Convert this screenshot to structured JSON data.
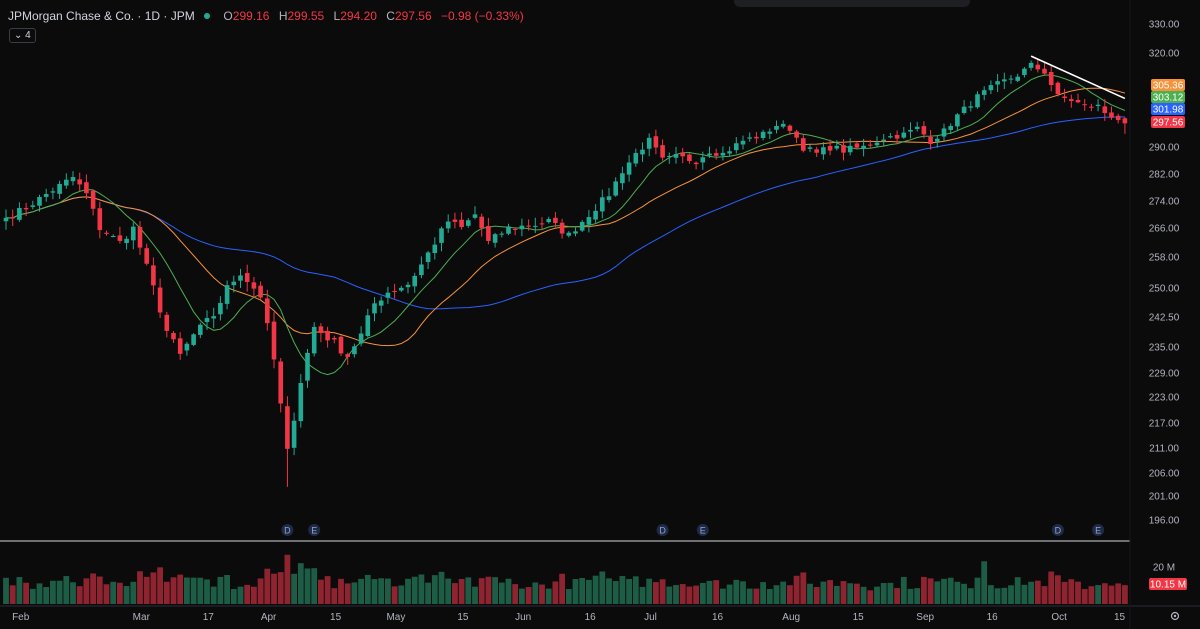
{
  "header": {
    "title": "JPMorgan Chase & Co. · 1D · JPM",
    "open_label": "O",
    "open": "299.16",
    "high_label": "H",
    "high": "299.55",
    "low_label": "L",
    "low": "294.20",
    "close_label": "C",
    "close": "297.56",
    "change": "−0.98 (−0.33%)",
    "indicator_count": "4"
  },
  "colors": {
    "background": "#0b0b0c",
    "up": "#22ab94",
    "down": "#f23645",
    "ma_fast": "#4caf50",
    "ma_mid": "#f7923a",
    "ma_slow": "#2962ff",
    "trendline": "#ffffff"
  },
  "chart_data": {
    "type": "candlestick",
    "symbol": "JPM",
    "interval": "1D",
    "y_ticks": [
      "330.00",
      "320.00",
      "305.36",
      "303.12",
      "301.98",
      "297.56",
      "290.00",
      "282.00",
      "274.00",
      "266.00",
      "258.00",
      "250.00",
      "242.50",
      "235.00",
      "229.00",
      "223.00",
      "217.00",
      "211.00",
      "206.00",
      "201.00",
      "196.00"
    ],
    "price_axis_ticks": [
      330,
      320,
      290,
      282,
      274,
      266,
      258,
      250,
      242.5,
      235,
      229,
      223,
      217,
      211,
      206,
      201,
      196
    ],
    "price_tags": [
      {
        "value": 305.36,
        "text": "305.36",
        "color": "#f7923a",
        "series": "ma_mid"
      },
      {
        "value": 303.12,
        "text": "303.12",
        "color": "#4caf50",
        "series": "ma_fast"
      },
      {
        "value": 301.98,
        "text": "301.98",
        "color": "#2962ff",
        "series": "ma_slow"
      },
      {
        "value": 297.56,
        "text": "297.56",
        "color": "#f23645",
        "series": "last_price"
      }
    ],
    "x_ticks": [
      {
        "bar": 1,
        "label": "Feb"
      },
      {
        "bar": 19,
        "label": "Mar"
      },
      {
        "bar": 29,
        "label": "17"
      },
      {
        "bar": 38,
        "label": "Apr"
      },
      {
        "bar": 48,
        "label": "15"
      },
      {
        "bar": 57,
        "label": "May"
      },
      {
        "bar": 67,
        "label": "15"
      },
      {
        "bar": 76,
        "label": "Jun"
      },
      {
        "bar": 86,
        "label": "16"
      },
      {
        "bar": 95,
        "label": "Jul"
      },
      {
        "bar": 105,
        "label": "16"
      },
      {
        "bar": 116,
        "label": "Aug"
      },
      {
        "bar": 126,
        "label": "15"
      },
      {
        "bar": 136,
        "label": "Sep"
      },
      {
        "bar": 146,
        "label": "16"
      },
      {
        "bar": 156,
        "label": "Oct"
      },
      {
        "bar": 165,
        "label": "15"
      }
    ],
    "events": [
      {
        "bar": 42,
        "label": "D"
      },
      {
        "bar": 46,
        "label": "E"
      },
      {
        "bar": 98,
        "label": "D"
      },
      {
        "bar": 104,
        "label": "E"
      },
      {
        "bar": 157,
        "label": "D"
      },
      {
        "bar": 163,
        "label": "E"
      }
    ],
    "close_anchors": [
      [
        0,
        269
      ],
      [
        3,
        272
      ],
      [
        6,
        276
      ],
      [
        10,
        281
      ],
      [
        12,
        276
      ],
      [
        14,
        266
      ],
      [
        17,
        262
      ],
      [
        19,
        266
      ],
      [
        22,
        250
      ],
      [
        24,
        239
      ],
      [
        26,
        233
      ],
      [
        28,
        238
      ],
      [
        31,
        243
      ],
      [
        33,
        250
      ],
      [
        35,
        254
      ],
      [
        37,
        250
      ],
      [
        38,
        248
      ],
      [
        40,
        232
      ],
      [
        42,
        210
      ],
      [
        44,
        227
      ],
      [
        46,
        240
      ],
      [
        49,
        236
      ],
      [
        51,
        233
      ],
      [
        53,
        238
      ],
      [
        55,
        246
      ],
      [
        57,
        249
      ],
      [
        60,
        251
      ],
      [
        62,
        256
      ],
      [
        64,
        262
      ],
      [
        66,
        268
      ],
      [
        68,
        266
      ],
      [
        70,
        270
      ],
      [
        72,
        262
      ],
      [
        75,
        266
      ],
      [
        79,
        267
      ],
      [
        81,
        268
      ],
      [
        84,
        264
      ],
      [
        87,
        270
      ],
      [
        90,
        276
      ],
      [
        92,
        283
      ],
      [
        94,
        288
      ],
      [
        96,
        292
      ],
      [
        98,
        286
      ],
      [
        100,
        287
      ],
      [
        103,
        286
      ],
      [
        105,
        289
      ],
      [
        107,
        288
      ],
      [
        110,
        292
      ],
      [
        113,
        294
      ],
      [
        115,
        297
      ],
      [
        117,
        296
      ],
      [
        119,
        290
      ],
      [
        121,
        288
      ],
      [
        123,
        290
      ],
      [
        125,
        289
      ],
      [
        128,
        290
      ],
      [
        131,
        293
      ],
      [
        134,
        294
      ],
      [
        136,
        296
      ],
      [
        138,
        292
      ],
      [
        140,
        295
      ],
      [
        142,
        300
      ],
      [
        145,
        306
      ],
      [
        148,
        310
      ],
      [
        151,
        313
      ],
      [
        153,
        316
      ],
      [
        155,
        314
      ],
      [
        157,
        306
      ],
      [
        159,
        305
      ],
      [
        161,
        303
      ],
      [
        163,
        303
      ],
      [
        164,
        301
      ],
      [
        165,
        300
      ],
      [
        166,
        299
      ],
      [
        167,
        297.56
      ]
    ],
    "moving_averages": [
      {
        "name": "ma_fast",
        "last": 303.12
      },
      {
        "name": "ma_mid",
        "last": 305.36
      },
      {
        "name": "ma_slow",
        "last": 301.98
      }
    ],
    "trendline": {
      "from": {
        "bar": 153,
        "price": 319
      },
      "to": {
        "bar": 167,
        "price": 305.5
      }
    },
    "y_scale": {
      "top_value": 330,
      "bottom_value": 196
    },
    "volume": {
      "label": "20 M",
      "last_value": "10.15 M",
      "last_value_millions": 10.15,
      "max_millions": 28,
      "spikes": [
        {
          "bar": 42,
          "millions": 26.5
        },
        {
          "bar": 44,
          "millions": 22
        },
        {
          "bar": 39,
          "millions": 19
        },
        {
          "bar": 146,
          "millions": 23
        },
        {
          "bar": 22,
          "millions": 17
        }
      ]
    },
    "num_bars": 168
  },
  "controls": {
    "settings_icon": "gear-icon"
  }
}
